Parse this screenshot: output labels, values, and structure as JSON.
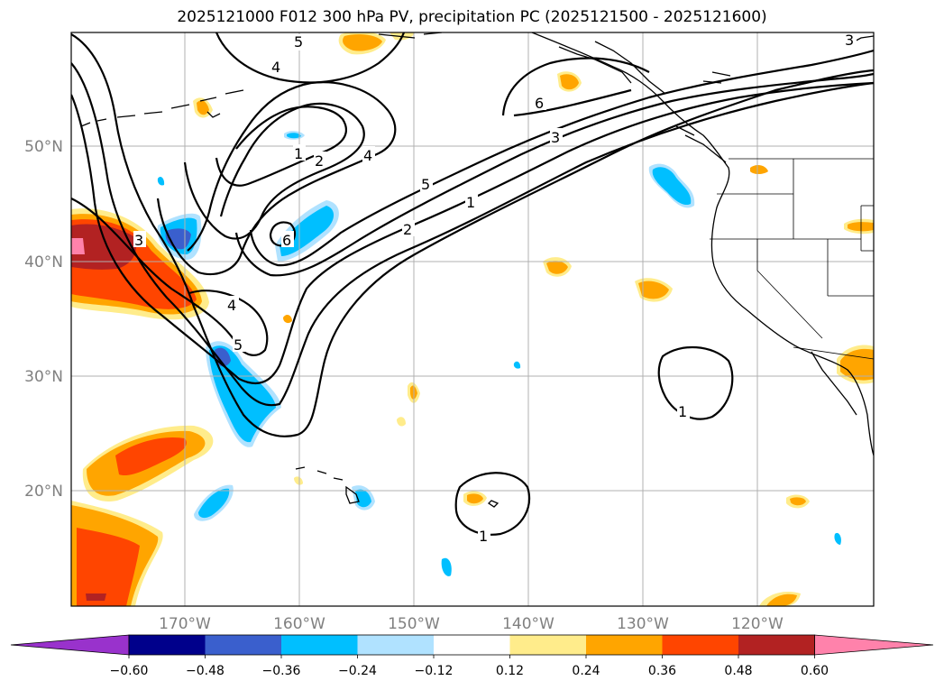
{
  "title": "2025121000 F012 300 hPa PV, precipitation PC (2025121500 - 2025121600)",
  "lat_labels": [
    "50°N",
    "40°N",
    "30°N",
    "20°N"
  ],
  "lon_labels": [
    "170°W",
    "160°W",
    "150°W",
    "140°W",
    "130°W",
    "120°W"
  ],
  "colorbar": {
    "colors": [
      "#9932CC",
      "#00008B",
      "#3A5FCD",
      "#00BFFF",
      "#B0E2FF",
      "#FFFFFF",
      "#FFEC8B",
      "#FFA500",
      "#FF4500",
      "#B22222",
      "#FF82AB"
    ],
    "ticks": [
      "−0.60",
      "−0.48",
      "−0.36",
      "−0.24",
      "−0.12",
      "0.12",
      "0.24",
      "0.36",
      "0.48",
      "0.60"
    ]
  },
  "contour_labels": [
    "5",
    "4",
    "6",
    "3",
    "1",
    "2",
    "4",
    "6",
    "5",
    "2",
    "1",
    "3",
    "3",
    "4",
    "5",
    "1",
    "1"
  ]
}
